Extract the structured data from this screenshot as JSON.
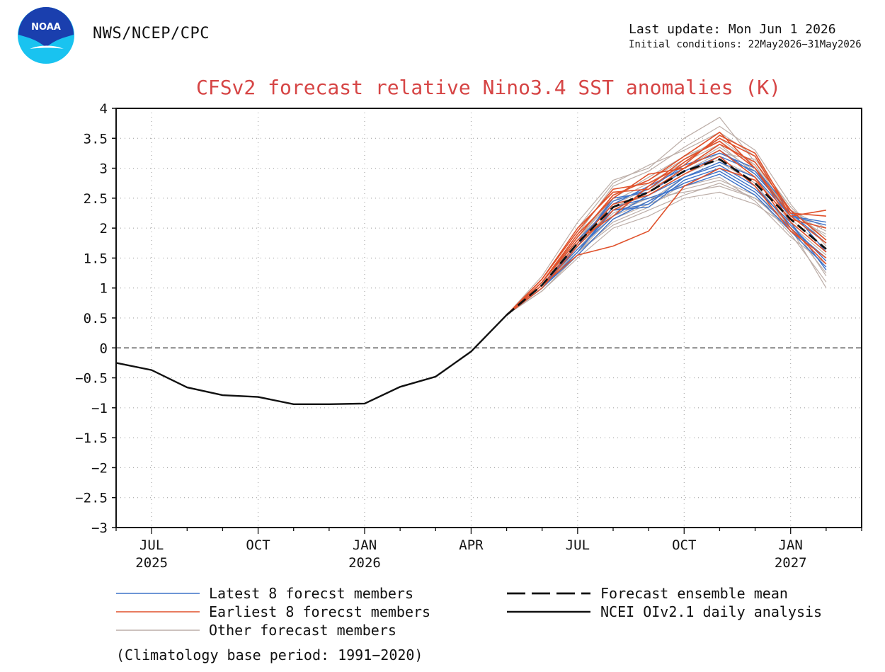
{
  "header": {
    "organization": "NWS/NCEP/CPC",
    "last_update": "Last update: Mon Jun 1 2026",
    "initial_conditions": "Initial conditions: 22May2026−31May2026",
    "logo_text": "NOAA"
  },
  "footnote": "(Climatology base period: 1991−2020)",
  "colors": {
    "latest": "#3f74c9",
    "earliest": "#e0512b",
    "other": "#bcaea8",
    "mean": "#111111",
    "analysis": "#111111",
    "title": "#d64545",
    "logo_blue": "#1a3fae",
    "logo_cyan": "#19c3f0"
  },
  "chart_data": {
    "type": "line",
    "title": "CFSv2 forecast relative Nino3.4 SST anomalies (K)",
    "xlabel": "",
    "ylabel": "",
    "ylim": [
      -3,
      4
    ],
    "yticks": [
      4,
      3.5,
      3,
      2.5,
      2,
      1.5,
      1,
      0.5,
      0,
      -0.5,
      -1,
      -1.5,
      -2,
      -2.5,
      -3
    ],
    "xlim": [
      "2025-06",
      "2027-03"
    ],
    "xticks": [
      {
        "month": "2025-07",
        "label": "JUL",
        "year": "2025"
      },
      {
        "month": "2025-10",
        "label": "OCT",
        "year": ""
      },
      {
        "month": "2026-01",
        "label": "JAN",
        "year": "2026"
      },
      {
        "month": "2026-04",
        "label": "APR",
        "year": ""
      },
      {
        "month": "2026-07",
        "label": "JUL",
        "year": ""
      },
      {
        "month": "2026-10",
        "label": "OCT",
        "year": ""
      },
      {
        "month": "2027-01",
        "label": "JAN",
        "year": "2027"
      }
    ],
    "grid": true,
    "zero_line": true,
    "analysis": {
      "name": "NCEI OIv2.1 daily analysis",
      "x": [
        "2025-06",
        "2025-07",
        "2025-08",
        "2025-09",
        "2025-10",
        "2025-11",
        "2025-12",
        "2026-01",
        "2026-02",
        "2026-03",
        "2026-04",
        "2026-05"
      ],
      "y": [
        -0.25,
        -0.37,
        -0.66,
        -0.79,
        -0.82,
        -0.94,
        -0.94,
        -0.93,
        -0.65,
        -0.48,
        -0.06,
        0.55
      ]
    },
    "ensemble_mean": {
      "name": "Forecast ensemble mean",
      "x": [
        "2026-05",
        "2026-06",
        "2026-07",
        "2026-08",
        "2026-09",
        "2026-10",
        "2026-11",
        "2026-12",
        "2027-01",
        "2027-02"
      ],
      "y": [
        0.55,
        1.05,
        1.75,
        2.35,
        2.6,
        2.95,
        3.15,
        2.75,
        2.15,
        1.65
      ]
    },
    "member_x": [
      "2026-05",
      "2026-06",
      "2026-07",
      "2026-08",
      "2026-09",
      "2026-10",
      "2026-11",
      "2026-12",
      "2027-01",
      "2027-02"
    ],
    "latest_members": {
      "name": "Latest 8 forecst members",
      "values": [
        [
          0.55,
          1.0,
          1.6,
          2.3,
          2.35,
          2.8,
          3.0,
          2.65,
          2.1,
          1.3
        ],
        [
          0.55,
          1.05,
          1.7,
          2.5,
          2.6,
          2.95,
          3.2,
          2.95,
          2.2,
          2.05
        ],
        [
          0.55,
          1.0,
          1.55,
          2.15,
          2.45,
          2.75,
          2.95,
          2.6,
          2.0,
          1.5
        ],
        [
          0.55,
          1.1,
          1.8,
          2.4,
          2.7,
          3.0,
          3.3,
          2.9,
          2.25,
          1.75
        ],
        [
          0.55,
          1.05,
          1.65,
          2.2,
          2.55,
          2.85,
          3.1,
          2.85,
          2.2,
          2.1
        ],
        [
          0.55,
          1.0,
          1.6,
          2.35,
          2.5,
          2.7,
          2.9,
          2.55,
          1.95,
          1.35
        ],
        [
          0.55,
          1.05,
          1.75,
          2.45,
          2.65,
          3.05,
          3.25,
          3.0,
          2.3,
          1.6
        ],
        [
          0.55,
          1.0,
          1.7,
          2.3,
          2.4,
          2.85,
          3.05,
          2.7,
          2.05,
          1.45
        ]
      ]
    },
    "earliest_members": {
      "name": "Earliest 8 forecst members",
      "values": [
        [
          0.55,
          1.15,
          2.0,
          2.6,
          2.65,
          3.1,
          3.5,
          3.2,
          2.2,
          2.3
        ],
        [
          0.55,
          1.1,
          1.85,
          2.55,
          2.8,
          3.2,
          3.6,
          3.0,
          2.1,
          1.6
        ],
        [
          0.55,
          1.05,
          1.55,
          1.7,
          1.95,
          2.7,
          3.0,
          2.8,
          2.15,
          2.0
        ],
        [
          0.55,
          1.1,
          1.9,
          2.5,
          2.9,
          3.0,
          3.4,
          3.1,
          2.3,
          1.8
        ],
        [
          0.55,
          1.0,
          1.7,
          2.3,
          2.6,
          3.0,
          3.3,
          2.85,
          2.0,
          1.4
        ],
        [
          0.55,
          1.15,
          1.95,
          2.65,
          2.75,
          3.05,
          3.55,
          3.25,
          2.25,
          2.2
        ],
        [
          0.55,
          1.05,
          1.75,
          2.4,
          2.55,
          2.9,
          3.2,
          2.7,
          1.95,
          1.5
        ],
        [
          0.55,
          1.1,
          1.8,
          2.2,
          2.7,
          3.15,
          3.45,
          3.0,
          2.2,
          1.75
        ]
      ]
    },
    "other_members": {
      "name": "Other forecast members",
      "values": [
        [
          0.55,
          1.2,
          2.1,
          2.8,
          3.0,
          3.5,
          3.85,
          3.1,
          2.2,
          1.9
        ],
        [
          0.55,
          0.95,
          1.5,
          2.0,
          2.2,
          2.5,
          2.6,
          2.4,
          2.0,
          1.0
        ],
        [
          0.55,
          1.0,
          1.65,
          2.25,
          2.5,
          2.6,
          2.7,
          2.5,
          2.1,
          1.2
        ],
        [
          0.55,
          1.1,
          1.9,
          2.7,
          2.95,
          3.35,
          3.7,
          3.3,
          2.4,
          1.7
        ],
        [
          0.55,
          1.05,
          1.6,
          2.1,
          2.35,
          2.75,
          2.95,
          2.6,
          2.05,
          1.55
        ],
        [
          0.55,
          1.0,
          1.7,
          2.35,
          2.6,
          3.0,
          3.35,
          2.95,
          2.3,
          1.85
        ],
        [
          0.55,
          1.05,
          1.8,
          2.55,
          2.8,
          3.15,
          3.5,
          3.05,
          2.15,
          1.65
        ],
        [
          0.55,
          0.95,
          1.55,
          2.15,
          2.4,
          2.65,
          2.8,
          2.55,
          1.9,
          1.1
        ],
        [
          0.55,
          1.1,
          1.85,
          2.45,
          2.75,
          3.1,
          3.4,
          2.9,
          2.25,
          1.95
        ],
        [
          0.55,
          1.0,
          1.6,
          2.2,
          2.45,
          2.85,
          3.1,
          2.75,
          2.0,
          1.25
        ],
        [
          0.55,
          1.05,
          1.75,
          2.4,
          2.65,
          2.95,
          3.25,
          3.15,
          2.35,
          1.8
        ],
        [
          0.55,
          1.0,
          1.65,
          2.3,
          2.5,
          2.7,
          2.85,
          2.45,
          1.85,
          1.4
        ],
        [
          0.55,
          1.15,
          2.0,
          2.75,
          3.05,
          3.3,
          3.6,
          3.2,
          2.3,
          2.0
        ],
        [
          0.55,
          1.0,
          1.6,
          2.05,
          2.3,
          2.55,
          2.75,
          2.5,
          2.0,
          1.5
        ],
        [
          0.55,
          1.05,
          1.7,
          2.35,
          2.55,
          2.9,
          3.15,
          2.85,
          2.1,
          1.6
        ],
        [
          0.55,
          1.1,
          1.8,
          2.5,
          2.85,
          3.2,
          3.45,
          3.05,
          2.2,
          1.75
        ]
      ]
    },
    "legend": {
      "placement": "bottom",
      "entries": [
        {
          "label": "Latest 8 forecst members",
          "style": "latest"
        },
        {
          "label": "Earliest 8 forecst members",
          "style": "earliest"
        },
        {
          "label": "Other forecast members",
          "style": "other"
        },
        {
          "label": "Forecast ensemble mean",
          "style": "mean"
        },
        {
          "label": "NCEI OIv2.1 daily analysis",
          "style": "analysis"
        }
      ]
    }
  }
}
